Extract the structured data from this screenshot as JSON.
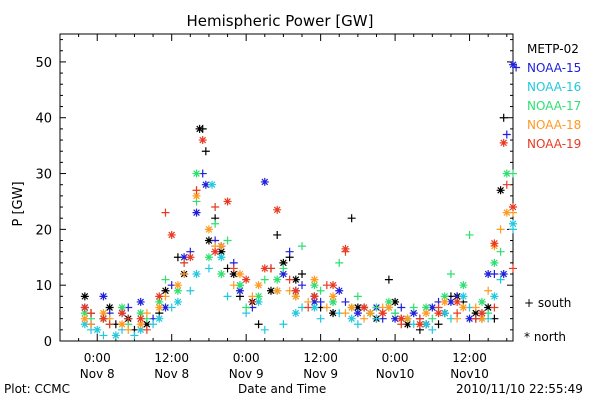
{
  "chart_data": {
    "type": "scatter",
    "title": "Hemispheric Power [GW]",
    "ylabel": "P [GW]",
    "xlabel": "Date and Time",
    "ylim": [
      0,
      55
    ],
    "yticks": [
      0,
      10,
      20,
      30,
      40,
      50
    ],
    "xlim_hours": [
      -6,
      67
    ],
    "xtick_labels": [
      {
        "hour": 0,
        "top": "0:00",
        "bottom": "Nov 8"
      },
      {
        "hour": 12,
        "top": "12:00",
        "bottom": "Nov 8"
      },
      {
        "hour": 24,
        "top": "0:00",
        "bottom": "Nov 9"
      },
      {
        "hour": 36,
        "top": "12:00",
        "bottom": "Nov 9"
      },
      {
        "hour": 48,
        "top": "0:00",
        "bottom": "Nov10"
      },
      {
        "hour": 60,
        "top": "12:00",
        "bottom": "Nov10"
      }
    ],
    "series": [
      {
        "name": "METP-02",
        "color": "#000000",
        "south": [
          [
            -1,
            5
          ],
          [
            1,
            4
          ],
          [
            3,
            3
          ],
          [
            6,
            2
          ],
          [
            10,
            5
          ],
          [
            13,
            15
          ],
          [
            17,
            38
          ],
          [
            17.5,
            34
          ],
          [
            19,
            22
          ],
          [
            21,
            13
          ],
          [
            23,
            8
          ],
          [
            26,
            3
          ],
          [
            29,
            19
          ],
          [
            31,
            15
          ],
          [
            33,
            12
          ],
          [
            36,
            6
          ],
          [
            41,
            22
          ],
          [
            44,
            5
          ],
          [
            47,
            11
          ],
          [
            49,
            4
          ],
          [
            52,
            2
          ],
          [
            55,
            3
          ],
          [
            57,
            8
          ],
          [
            59,
            7
          ],
          [
            62,
            4
          ],
          [
            64,
            4
          ],
          [
            65.5,
            40
          ]
        ],
        "north": [
          [
            -2,
            8
          ],
          [
            2,
            6
          ],
          [
            5,
            4
          ],
          [
            8,
            3
          ],
          [
            11,
            9
          ],
          [
            14,
            12
          ],
          [
            16.5,
            38
          ],
          [
            18,
            18
          ],
          [
            20,
            16
          ],
          [
            22,
            12
          ],
          [
            25,
            7
          ],
          [
            28,
            9
          ],
          [
            30,
            14
          ],
          [
            32,
            11
          ],
          [
            35,
            8
          ],
          [
            38,
            5
          ],
          [
            42,
            6
          ],
          [
            45,
            4
          ],
          [
            48,
            7
          ],
          [
            50,
            3
          ],
          [
            53,
            3
          ],
          [
            56,
            5
          ],
          [
            58,
            8
          ],
          [
            61,
            5
          ],
          [
            63,
            6
          ],
          [
            65,
            27
          ]
        ]
      },
      {
        "name": "NOAA-15",
        "color": "#1f1fdc",
        "south": [
          [
            -1,
            3
          ],
          [
            2,
            5
          ],
          [
            5,
            6
          ],
          [
            9,
            4
          ],
          [
            12,
            10
          ],
          [
            15,
            16
          ],
          [
            17,
            30
          ],
          [
            19,
            18
          ],
          [
            22,
            14
          ],
          [
            25,
            6
          ],
          [
            28,
            13
          ],
          [
            31,
            16
          ],
          [
            33,
            10
          ],
          [
            36,
            7
          ],
          [
            40,
            7
          ],
          [
            43,
            6
          ],
          [
            46,
            4
          ],
          [
            49,
            6
          ],
          [
            52,
            4
          ],
          [
            55,
            7
          ],
          [
            58,
            8
          ],
          [
            61,
            4
          ],
          [
            64,
            12
          ],
          [
            66,
            37
          ],
          [
            67.5,
            49
          ]
        ],
        "north": [
          [
            -2,
            6
          ],
          [
            1,
            8
          ],
          [
            4,
            5
          ],
          [
            7,
            7
          ],
          [
            11,
            6
          ],
          [
            14,
            15
          ],
          [
            16,
            23
          ],
          [
            17.5,
            28
          ],
          [
            20,
            17
          ],
          [
            23,
            9
          ],
          [
            27,
            28.5
          ],
          [
            30,
            12
          ],
          [
            32,
            9
          ],
          [
            35,
            7
          ],
          [
            39,
            9
          ],
          [
            42,
            5
          ],
          [
            45,
            6
          ],
          [
            48,
            4
          ],
          [
            51,
            5
          ],
          [
            54,
            6
          ],
          [
            57,
            7
          ],
          [
            60,
            4
          ],
          [
            63,
            12
          ],
          [
            65.5,
            12
          ],
          [
            67,
            49.5
          ]
        ]
      },
      {
        "name": "NOAA-16",
        "color": "#22c8e0",
        "south": [
          [
            -1,
            2
          ],
          [
            1,
            1
          ],
          [
            4,
            2
          ],
          [
            6,
            1
          ],
          [
            9,
            3
          ],
          [
            12,
            6
          ],
          [
            15,
            9
          ],
          [
            18,
            13
          ],
          [
            21,
            8
          ],
          [
            24,
            5
          ],
          [
            27,
            2
          ],
          [
            30,
            3
          ],
          [
            33,
            6
          ],
          [
            36,
            4
          ],
          [
            39,
            5
          ],
          [
            42,
            3
          ],
          [
            45,
            4
          ],
          [
            48,
            5
          ],
          [
            51,
            3
          ],
          [
            54,
            2
          ],
          [
            57,
            4
          ],
          [
            60,
            6
          ],
          [
            63,
            4
          ],
          [
            65,
            11
          ],
          [
            67,
            20
          ]
        ],
        "north": [
          [
            -2,
            3
          ],
          [
            0,
            2
          ],
          [
            3,
            1
          ],
          [
            7,
            2
          ],
          [
            10,
            4
          ],
          [
            13,
            7
          ],
          [
            16,
            12
          ],
          [
            18.5,
            28
          ],
          [
            20,
            15
          ],
          [
            23,
            10
          ],
          [
            26,
            7
          ],
          [
            29,
            9
          ],
          [
            32,
            5
          ],
          [
            35,
            6
          ],
          [
            38,
            7
          ],
          [
            41,
            4
          ],
          [
            44,
            5
          ],
          [
            47,
            6
          ],
          [
            50,
            4
          ],
          [
            53,
            3
          ],
          [
            56,
            5
          ],
          [
            59,
            8
          ],
          [
            62,
            5
          ],
          [
            64,
            8
          ],
          [
            67,
            21
          ]
        ]
      },
      {
        "name": "NOAA-17",
        "color": "#2ee070",
        "south": [
          [
            -1,
            4
          ],
          [
            2,
            3
          ],
          [
            5,
            3
          ],
          [
            8,
            4
          ],
          [
            11,
            11
          ],
          [
            14,
            14
          ],
          [
            16,
            25
          ],
          [
            19,
            21
          ],
          [
            21,
            18
          ],
          [
            24,
            6
          ],
          [
            27,
            11
          ],
          [
            30,
            13
          ],
          [
            33,
            17
          ],
          [
            36,
            9
          ],
          [
            39,
            14
          ],
          [
            42,
            8
          ],
          [
            45,
            6
          ],
          [
            48,
            5
          ],
          [
            51,
            6
          ],
          [
            54,
            4
          ],
          [
            57,
            12
          ],
          [
            60,
            19
          ],
          [
            63,
            5
          ],
          [
            65,
            16
          ],
          [
            67,
            30
          ]
        ],
        "north": [
          [
            -2,
            5
          ],
          [
            1,
            4
          ],
          [
            4,
            6
          ],
          [
            7,
            5
          ],
          [
            10,
            7
          ],
          [
            13,
            9
          ],
          [
            16,
            30
          ],
          [
            18,
            15
          ],
          [
            20,
            12
          ],
          [
            23,
            10
          ],
          [
            26,
            8
          ],
          [
            29,
            11
          ],
          [
            32,
            8
          ],
          [
            35,
            10
          ],
          [
            38,
            7
          ],
          [
            41,
            6
          ],
          [
            44,
            5
          ],
          [
            47,
            7
          ],
          [
            50,
            4
          ],
          [
            53,
            6
          ],
          [
            56,
            8
          ],
          [
            59,
            10
          ],
          [
            62,
            7
          ],
          [
            64,
            14
          ],
          [
            66,
            30
          ]
        ]
      },
      {
        "name": "NOAA-18",
        "color": "#ff9a22",
        "south": [
          [
            -1,
            3
          ],
          [
            2,
            4
          ],
          [
            5,
            2
          ],
          [
            8,
            5
          ],
          [
            11,
            8
          ],
          [
            14,
            12
          ],
          [
            16,
            27
          ],
          [
            19,
            17
          ],
          [
            22,
            10
          ],
          [
            25,
            8
          ],
          [
            28,
            13
          ],
          [
            31,
            9
          ],
          [
            34,
            7
          ],
          [
            37,
            6
          ],
          [
            40,
            5
          ],
          [
            43,
            4
          ],
          [
            46,
            6
          ],
          [
            49,
            4
          ],
          [
            52,
            3
          ],
          [
            55,
            5
          ],
          [
            58,
            4
          ],
          [
            61,
            6
          ],
          [
            63,
            9
          ],
          [
            65,
            20
          ],
          [
            67,
            23
          ]
        ],
        "north": [
          [
            -2,
            4
          ],
          [
            1,
            5
          ],
          [
            4,
            3
          ],
          [
            7,
            3
          ],
          [
            10,
            6
          ],
          [
            13,
            10
          ],
          [
            16,
            26
          ],
          [
            18,
            20
          ],
          [
            20,
            17
          ],
          [
            23,
            12
          ],
          [
            26,
            10
          ],
          [
            29,
            9
          ],
          [
            32,
            8
          ],
          [
            35,
            11
          ],
          [
            38,
            8
          ],
          [
            41,
            6
          ],
          [
            44,
            5
          ],
          [
            47,
            6
          ],
          [
            50,
            4
          ],
          [
            53,
            5
          ],
          [
            56,
            7
          ],
          [
            59,
            6
          ],
          [
            62,
            4
          ],
          [
            64,
            17
          ],
          [
            66,
            23
          ]
        ]
      },
      {
        "name": "NOAA-19",
        "color": "#e83a22",
        "south": [
          [
            -1,
            5
          ],
          [
            2,
            3
          ],
          [
            5,
            4
          ],
          [
            8,
            2
          ],
          [
            11,
            23
          ],
          [
            14,
            14
          ],
          [
            16,
            27
          ],
          [
            19,
            24
          ],
          [
            22,
            13
          ],
          [
            25,
            7
          ],
          [
            28,
            13
          ],
          [
            31,
            11
          ],
          [
            34,
            6
          ],
          [
            37,
            10
          ],
          [
            40,
            16
          ],
          [
            43,
            6
          ],
          [
            46,
            5
          ],
          [
            49,
            3
          ],
          [
            52,
            4
          ],
          [
            55,
            6
          ],
          [
            58,
            5
          ],
          [
            61,
            4
          ],
          [
            64,
            6
          ],
          [
            66,
            28
          ],
          [
            67,
            13
          ]
        ],
        "north": [
          [
            -2,
            6
          ],
          [
            1,
            4
          ],
          [
            4,
            5
          ],
          [
            7,
            4
          ],
          [
            10,
            8
          ],
          [
            12,
            19
          ],
          [
            15,
            15
          ],
          [
            17,
            36
          ],
          [
            19,
            16
          ],
          [
            21,
            25
          ],
          [
            24,
            11
          ],
          [
            27,
            13
          ],
          [
            29,
            23.5
          ],
          [
            32,
            9
          ],
          [
            35,
            8
          ],
          [
            38,
            10
          ],
          [
            40,
            16.5
          ],
          [
            43,
            6
          ],
          [
            46,
            5
          ],
          [
            49,
            4
          ],
          [
            52,
            3
          ],
          [
            55,
            5
          ],
          [
            58,
            7
          ],
          [
            62,
            5
          ],
          [
            64,
            17.5
          ],
          [
            65.5,
            35.5
          ],
          [
            67,
            24
          ]
        ]
      }
    ],
    "marker_legend": [
      {
        "symbol": "+",
        "label": "south"
      },
      {
        "symbol": "*",
        "label": "north"
      }
    ]
  },
  "footer": {
    "left": "Plot: CCMC",
    "center": "Date and Time",
    "right": "2010/11/10 22:55:49"
  }
}
